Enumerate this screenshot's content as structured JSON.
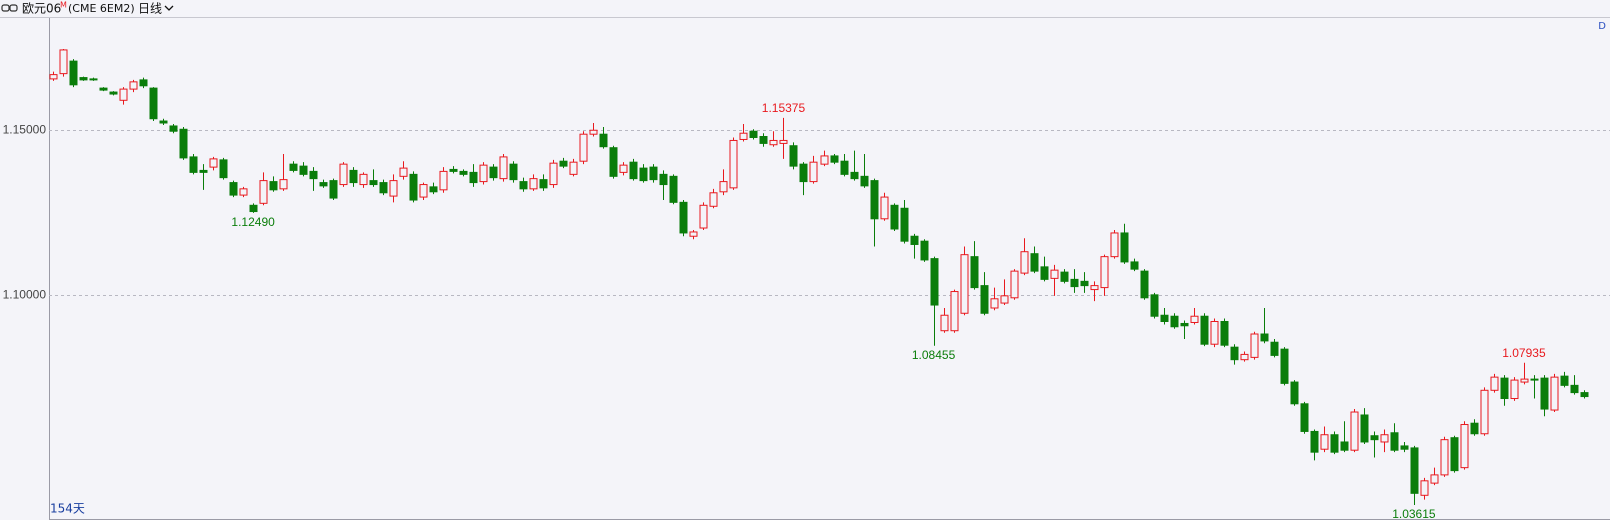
{
  "header": {
    "name": "欧元06",
    "flag": "M",
    "code": "(CME 6EM2)",
    "period": "日线",
    "corner": "D"
  },
  "chart_data": {
    "type": "candlestick",
    "count_label": "154天",
    "up_color": "#e8191e",
    "down_color": "#0a7d0a",
    "grid": true,
    "ylim": [
      1.0319,
      1.1841
    ],
    "yticks": [
      {
        "value": 1.1,
        "label": "1.10000"
      },
      {
        "value": 1.15,
        "label": "1.15000"
      }
    ],
    "open": [
      1.1656,
      1.1672,
      1.171,
      1.166,
      1.1656,
      1.1628,
      1.1616,
      1.1591,
      1.1625,
      1.1653,
      1.1628,
      1.1528,
      1.1513,
      1.1503,
      1.1419,
      1.1378,
      1.1388,
      1.141,
      1.1341,
      1.1303,
      1.1272,
      1.1278,
      1.1344,
      1.1322,
      1.1397,
      1.1391,
      1.1375,
      1.1341,
      1.1347,
      1.1335,
      1.1378,
      1.1335,
      1.1347,
      1.1341,
      1.13,
      1.136,
      1.1366,
      1.1297,
      1.1328,
      1.1319,
      1.1381,
      1.1375,
      1.1372,
      1.1344,
      1.1388,
      1.1353,
      1.1397,
      1.1344,
      1.1322,
      1.135,
      1.1335,
      1.1406,
      1.1366,
      1.1406,
      1.1488,
      1.1488,
      1.1447,
      1.1372,
      1.1403,
      1.1385,
      1.1388,
      1.1366,
      1.136,
      1.1281,
      1.1178,
      1.1203,
      1.1269,
      1.1313,
      1.1325,
      1.1472,
      1.1497,
      1.1481,
      1.1456,
      1.146,
      1.1453,
      1.1397,
      1.1344,
      1.1397,
      1.1422,
      1.1406,
      1.1372,
      1.136,
      1.1347,
      1.1231,
      1.1272,
      1.1263,
      1.1178,
      1.1163,
      1.111,
      1.0891,
      1.0891,
      1.0944,
      1.1116,
      1.1028,
      1.096,
      1.0975,
      1.0991,
      1.1066,
      1.1125,
      1.1085,
      1.105,
      1.1069,
      1.1047,
      1.1041,
      1.1016,
      1.1022,
      1.1116,
      1.1188,
      1.11,
      1.1072,
      1.1,
      1.0938,
      1.0935,
      1.0913,
      1.0916,
      1.0935,
      1.085,
      1.0919,
      1.0841,
      1.0803,
      1.081,
      1.0881,
      1.0856,
      1.0835,
      1.0735,
      1.0669,
      1.0585,
      1.0531,
      1.0575,
      1.0553,
      1.0528,
      1.0635,
      1.0572,
      1.0553,
      1.0581,
      1.0541,
      1.0535,
      1.0391,
      1.0428,
      1.0453,
      1.0566,
      1.0475,
      1.061,
      1.0578,
      1.071,
      1.0747,
      1.0685,
      1.0735,
      1.0744,
      1.0747,
      1.065,
      1.0753,
      1.0725,
      1.0703
    ],
    "high": [
      1.1678,
      1.1747,
      1.1716,
      1.1663,
      1.166,
      1.1631,
      1.1619,
      1.1631,
      1.1653,
      1.166,
      1.1631,
      1.1535,
      1.1519,
      1.151,
      1.1428,
      1.1397,
      1.1419,
      1.1416,
      1.1347,
      1.1328,
      1.1278,
      1.1372,
      1.136,
      1.1428,
      1.1406,
      1.1403,
      1.1388,
      1.135,
      1.1353,
      1.1403,
      1.1388,
      1.1372,
      1.1381,
      1.135,
      1.1366,
      1.1406,
      1.1375,
      1.1341,
      1.1341,
      1.1388,
      1.1391,
      1.1381,
      1.1397,
      1.1403,
      1.1397,
      1.1428,
      1.1406,
      1.1356,
      1.1366,
      1.1366,
      1.141,
      1.1416,
      1.1413,
      1.1497,
      1.1522,
      1.151,
      1.1453,
      1.1403,
      1.1413,
      1.1397,
      1.1397,
      1.1378,
      1.1366,
      1.1288,
      1.1197,
      1.1281,
      1.1322,
      1.1381,
      1.1478,
      1.1519,
      1.1503,
      1.1491,
      1.1497,
      1.15375,
      1.1463,
      1.1403,
      1.1422,
      1.1438,
      1.1428,
      1.1428,
      1.1438,
      1.1428,
      1.1353,
      1.131,
      1.1278,
      1.1288,
      1.1185,
      1.1169,
      1.1116,
      1.096,
      1.1016,
      1.1147,
      1.1163,
      1.1069,
      1.1022,
      1.1047,
      1.1078,
      1.1172,
      1.1147,
      1.1116,
      1.1091,
      1.1078,
      1.1078,
      1.1069,
      1.1041,
      1.1122,
      1.1197,
      1.1216,
      1.111,
      1.1078,
      1.1006,
      1.096,
      1.0944,
      1.0922,
      1.096,
      1.0944,
      1.0928,
      1.0928,
      1.085,
      1.0828,
      1.0888,
      1.096,
      1.0866,
      1.0841,
      1.0741,
      1.0675,
      1.0591,
      1.06,
      1.0585,
      1.0616,
      1.0653,
      1.0656,
      1.0585,
      1.0591,
      1.061,
      1.0553,
      1.0541,
      1.0444,
      1.0475,
      1.0569,
      1.0572,
      1.0616,
      1.0622,
      1.0719,
      1.076,
      1.0756,
      1.075,
      1.07935,
      1.0756,
      1.0756,
      1.076,
      1.0766,
      1.0756,
      1.071
    ],
    "low": [
      1.165,
      1.1663,
      1.1631,
      1.165,
      1.165,
      1.1619,
      1.1606,
      1.1578,
      1.1616,
      1.1628,
      1.1528,
      1.1516,
      1.1491,
      1.141,
      1.1366,
      1.1319,
      1.1378,
      1.135,
      1.1297,
      1.1297,
      1.1249,
      1.1272,
      1.1313,
      1.1316,
      1.1372,
      1.136,
      1.1316,
      1.1325,
      1.1288,
      1.1328,
      1.1328,
      1.1325,
      1.1328,
      1.1303,
      1.1281,
      1.135,
      1.1281,
      1.1288,
      1.1306,
      1.131,
      1.1369,
      1.136,
      1.1328,
      1.1335,
      1.1347,
      1.1344,
      1.1341,
      1.1313,
      1.1316,
      1.1316,
      1.1325,
      1.1385,
      1.136,
      1.1397,
      1.1481,
      1.1444,
      1.1353,
      1.1363,
      1.1347,
      1.1341,
      1.1341,
      1.1288,
      1.1275,
      1.1178,
      1.1169,
      1.1197,
      1.1263,
      1.1303,
      1.1319,
      1.1466,
      1.1472,
      1.145,
      1.145,
      1.1413,
      1.1381,
      1.1303,
      1.1338,
      1.1391,
      1.1397,
      1.136,
      1.1347,
      1.1325,
      1.1147,
      1.1225,
      1.1194,
      1.1156,
      1.111,
      1.11,
      1.08455,
      1.0885,
      1.0885,
      1.0938,
      1.1016,
      1.0938,
      1.0953,
      1.0969,
      1.0985,
      1.106,
      1.1066,
      1.1041,
      1.0997,
      1.1035,
      1.1006,
      1.1006,
      1.0981,
      1.0997,
      1.111,
      1.1094,
      1.1072,
      1.0985,
      1.0928,
      1.091,
      1.0897,
      1.0866,
      1.091,
      1.0844,
      1.0841,
      1.0841,
      1.0788,
      1.0797,
      1.0803,
      1.0853,
      1.081,
      1.0725,
      1.0663,
      1.0578,
      1.0497,
      1.0522,
      1.0516,
      1.0522,
      1.0522,
      1.0547,
      1.0506,
      1.0522,
      1.0522,
      1.0522,
      1.03615,
      1.0378,
      1.0422,
      1.0447,
      1.046,
      1.0469,
      1.0572,
      1.0572,
      1.0703,
      1.0663,
      1.0678,
      1.0728,
      1.0685,
      1.0631,
      1.0644,
      1.0719,
      1.0697,
      1.0685
    ],
    "close": [
      1.1669,
      1.1744,
      1.1638,
      1.1653,
      1.1653,
      1.1622,
      1.161,
      1.1625,
      1.1647,
      1.1635,
      1.1535,
      1.1522,
      1.1497,
      1.1416,
      1.1372,
      1.1372,
      1.1413,
      1.1356,
      1.1303,
      1.1322,
      1.1253,
      1.1347,
      1.1319,
      1.135,
      1.1378,
      1.1366,
      1.1353,
      1.1331,
      1.1294,
      1.1397,
      1.1341,
      1.1366,
      1.1335,
      1.131,
      1.1347,
      1.1385,
      1.1288,
      1.1335,
      1.1313,
      1.1375,
      1.1375,
      1.1366,
      1.1341,
      1.1394,
      1.1356,
      1.1419,
      1.135,
      1.1322,
      1.1353,
      1.1325,
      1.14,
      1.1391,
      1.1403,
      1.1488,
      1.15,
      1.145,
      1.136,
      1.1394,
      1.1353,
      1.1347,
      1.135,
      1.1335,
      1.1281,
      1.1188,
      1.1191,
      1.1272,
      1.131,
      1.1344,
      1.1469,
      1.1491,
      1.1478,
      1.146,
      1.1469,
      1.1469,
      1.1391,
      1.1344,
      1.1403,
      1.1422,
      1.1403,
      1.1366,
      1.1353,
      1.1331,
      1.1231,
      1.1297,
      1.12,
      1.1163,
      1.1153,
      1.1106,
      1.0969,
      1.0938,
      1.101,
      1.1122,
      1.1022,
      1.0944,
      1.0988,
      1.0997,
      1.1072,
      1.1131,
      1.1072,
      1.1047,
      1.1075,
      1.1041,
      1.1025,
      1.1028,
      1.1028,
      1.1116,
      1.1188,
      1.11,
      1.1078,
      1.0991,
      1.0935,
      1.0919,
      1.0903,
      1.0906,
      1.0935,
      1.085,
      1.0919,
      1.0847,
      1.0803,
      1.0819,
      1.0881,
      1.086,
      1.0816,
      1.0731,
      1.0669,
      1.0585,
      1.0522,
      1.0575,
      1.0522,
      1.0528,
      1.0644,
      1.0553,
      1.056,
      1.0575,
      1.0528,
      1.0531,
      1.0397,
      1.0435,
      1.0453,
      1.056,
      1.0466,
      1.0606,
      1.0578,
      1.071,
      1.075,
      1.0685,
      1.0741,
      1.0744,
      1.0741,
      1.0653,
      1.075,
      1.0725,
      1.0703,
      1.0691
    ],
    "annotations": [
      {
        "value": 1.1249,
        "label": "1.12490"
      },
      {
        "value": 1.15375,
        "label": "1.15375"
      },
      {
        "value": 1.08455,
        "label": "1.08455"
      },
      {
        "value": 1.07935,
        "label": "1.07935"
      },
      {
        "value": 1.03615,
        "label": "1.03615"
      }
    ]
  }
}
